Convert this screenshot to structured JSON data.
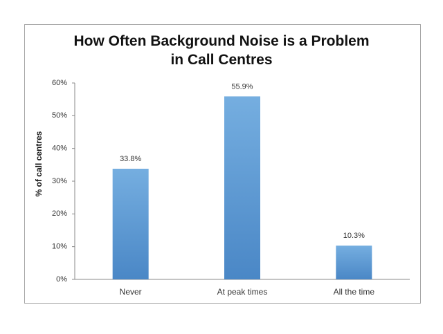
{
  "chart_data": {
    "type": "bar",
    "title": "How Often Background Noise is a Problem in Call Centres",
    "y_label": "% of call centres",
    "categories": [
      "Never",
      "At peak times",
      "All the time"
    ],
    "values": [
      33.8,
      55.9,
      10.3
    ],
    "value_labels": [
      "33.8%",
      "55.9%",
      "10.3%"
    ],
    "color": "#5b9bd5",
    "ylim": [
      0,
      60
    ],
    "yticks": [
      {
        "value": 0,
        "label": "0%"
      },
      {
        "value": 10,
        "label": "10%"
      },
      {
        "value": 20,
        "label": "20%"
      },
      {
        "value": 30,
        "label": "30%"
      },
      {
        "value": 40,
        "label": "40%"
      },
      {
        "value": 50,
        "label": "50%"
      },
      {
        "value": 60,
        "label": "60%"
      }
    ],
    "grid": false
  }
}
